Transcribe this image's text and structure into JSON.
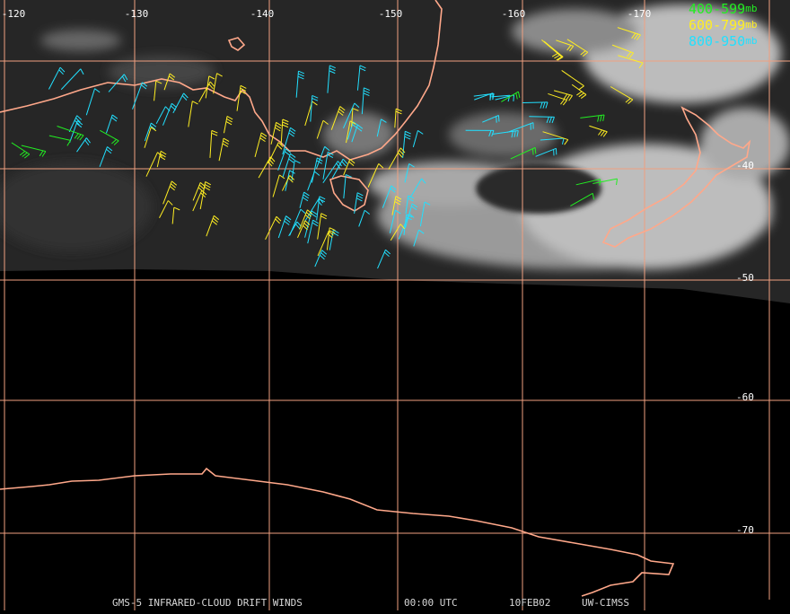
{
  "map": {
    "lon_labels": [
      "-120",
      "-130",
      "-140",
      "-150",
      "-160",
      "-170"
    ],
    "lat_labels": [
      "-40",
      "-50",
      "-60",
      "-70"
    ],
    "legend": [
      {
        "label": "400-599",
        "unit": "mb",
        "color": "#22ee22"
      },
      {
        "label": "600-799",
        "unit": "mb",
        "color": "#ffee22"
      },
      {
        "label": "800-950",
        "unit": "mb",
        "color": "#22e0ff"
      }
    ],
    "footer": [
      "GMS-5 INFRARED-CLOUD DRIFT WINDS",
      "00:00 UTC",
      "10FEB02",
      "UW-CIMSS"
    ]
  }
}
